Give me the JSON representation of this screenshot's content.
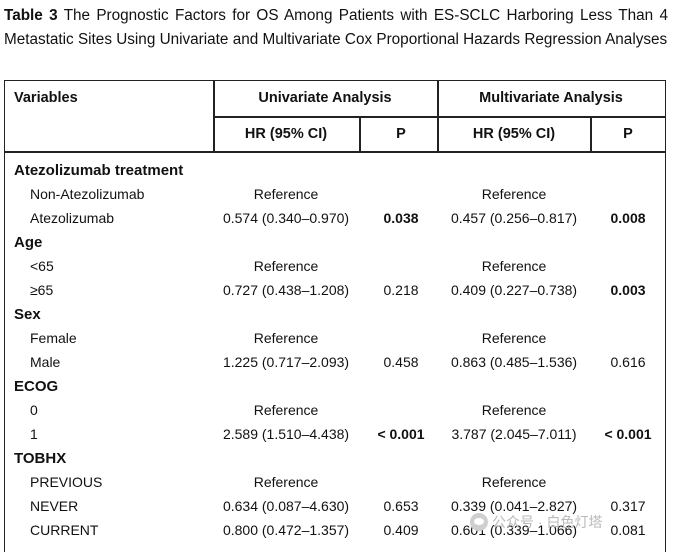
{
  "caption": {
    "label": "Table 3",
    "text": "The Prognostic Factors for OS Among Patients with ES-SCLC Harboring Less Than 4 Metastatic Sites Using Univariate and Multivariate Cox Proportional Hazards Regression Analyses"
  },
  "header": {
    "variables": "Variables",
    "univariate": "Univariate Analysis",
    "multivariate": "Multivariate Analysis",
    "hr": "HR (95% CI)",
    "p": "P"
  },
  "groups": [
    {
      "name": "Atezolizumab treatment",
      "rows": [
        {
          "label": "Non-Atezolizumab",
          "uni_hr": "Reference",
          "uni_p": "",
          "uni_p_bold": false,
          "multi_hr": "Reference",
          "multi_p": "",
          "multi_p_bold": false
        },
        {
          "label": "Atezolizumab",
          "uni_hr": "0.574 (0.340–0.970)",
          "uni_p": "0.038",
          "uni_p_bold": true,
          "multi_hr": "0.457 (0.256–0.817)",
          "multi_p": "0.008",
          "multi_p_bold": true
        }
      ]
    },
    {
      "name": "Age",
      "rows": [
        {
          "label": "<65",
          "uni_hr": "Reference",
          "uni_p": "",
          "uni_p_bold": false,
          "multi_hr": "Reference",
          "multi_p": "",
          "multi_p_bold": false
        },
        {
          "label": "≥65",
          "uni_hr": "0.727 (0.438–1.208)",
          "uni_p": "0.218",
          "uni_p_bold": false,
          "multi_hr": "0.409 (0.227–0.738)",
          "multi_p": "0.003",
          "multi_p_bold": true
        }
      ]
    },
    {
      "name": "Sex",
      "rows": [
        {
          "label": "Female",
          "uni_hr": "Reference",
          "uni_p": "",
          "uni_p_bold": false,
          "multi_hr": "Reference",
          "multi_p": "",
          "multi_p_bold": false
        },
        {
          "label": "Male",
          "uni_hr": "1.225 (0.717–2.093)",
          "uni_p": "0.458",
          "uni_p_bold": false,
          "multi_hr": "0.863 (0.485–1.536)",
          "multi_p": "0.616",
          "multi_p_bold": false
        }
      ]
    },
    {
      "name": "ECOG",
      "rows": [
        {
          "label": "0",
          "uni_hr": "Reference",
          "uni_p": "",
          "uni_p_bold": false,
          "multi_hr": "Reference",
          "multi_p": "",
          "multi_p_bold": false
        },
        {
          "label": "1",
          "uni_hr": "2.589 (1.510–4.438)",
          "uni_p": "< 0.001",
          "uni_p_bold": true,
          "multi_hr": "3.787 (2.045–7.011)",
          "multi_p": "< 0.001",
          "multi_p_bold": true
        }
      ]
    },
    {
      "name": "TOBHX",
      "rows": [
        {
          "label": "PREVIOUS",
          "uni_hr": "Reference",
          "uni_p": "",
          "uni_p_bold": false,
          "multi_hr": "Reference",
          "multi_p": "",
          "multi_p_bold": false
        },
        {
          "label": "NEVER",
          "uni_hr": "0.634 (0.087–4.630)",
          "uni_p": "0.653",
          "uni_p_bold": false,
          "multi_hr": "0.339 (0.041–2.827)",
          "multi_p": "0.317",
          "multi_p_bold": false
        },
        {
          "label": "CURRENT",
          "uni_hr": "0.800 (0.472–1.357)",
          "uni_p": "0.409",
          "uni_p_bold": false,
          "multi_hr": "0.601 (0.339–1.066)",
          "multi_p": "0.081",
          "multi_p_bold": false
        }
      ]
    }
  ],
  "watermark": {
    "text": "公众号 · 白色灯塔",
    "icon": "wechat-icon"
  }
}
